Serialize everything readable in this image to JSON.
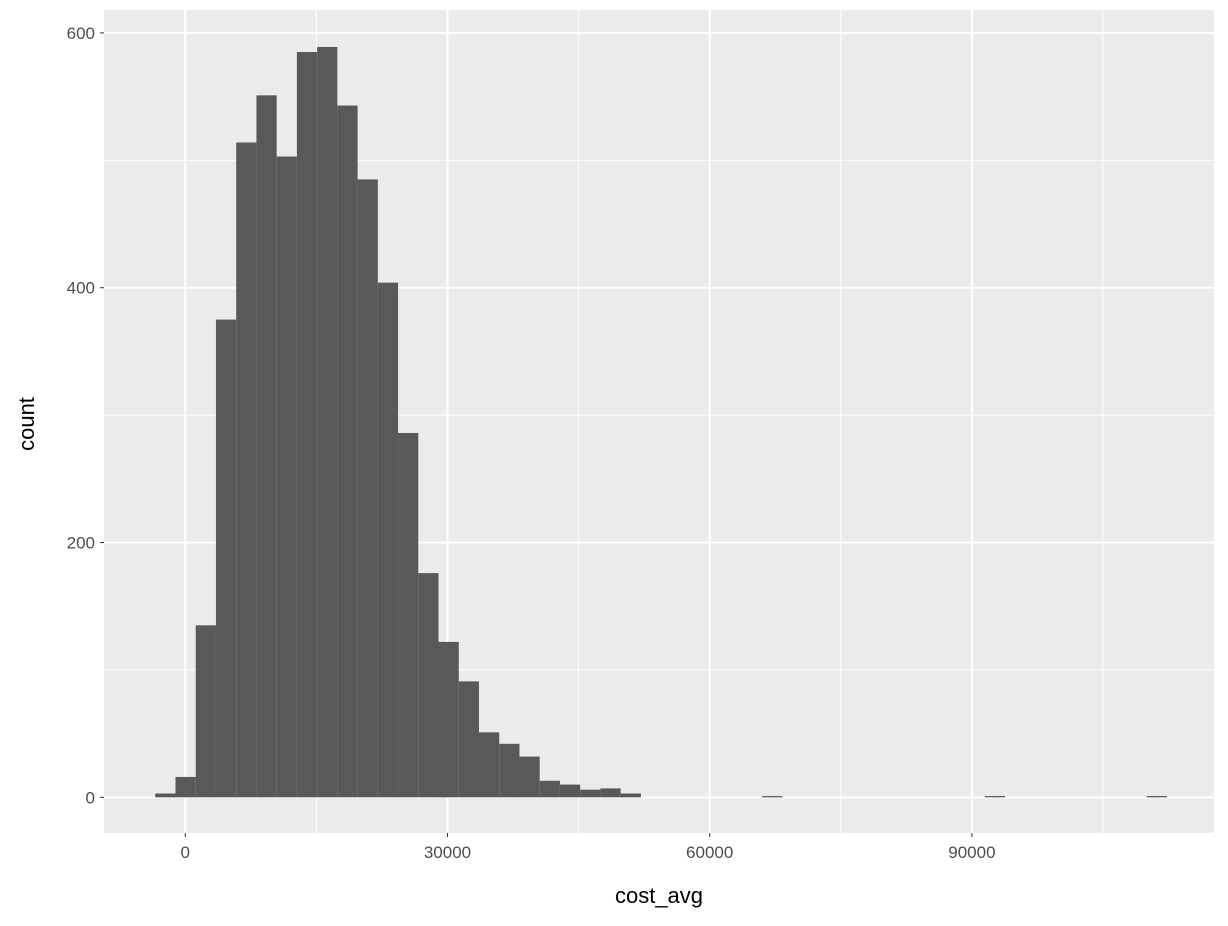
{
  "chart_data": {
    "type": "bar",
    "subtype": "histogram",
    "xlabel": "cost_avg",
    "ylabel": "count",
    "xlim": [
      -9300,
      117700
    ],
    "ylim": [
      -28,
      618
    ],
    "x_ticks": [
      0,
      30000,
      60000,
      90000
    ],
    "x_tick_labels": [
      "0",
      "30000",
      "60000",
      "90000"
    ],
    "y_ticks": [
      0,
      200,
      400,
      600
    ],
    "y_tick_labels": [
      "0",
      "200",
      "400",
      "600"
    ],
    "grid": true,
    "bin_start": -3435,
    "bin_width": 2315,
    "counts": [
      3,
      16,
      135,
      375,
      514,
      551,
      503,
      585,
      589,
      543,
      485,
      404,
      286,
      176,
      122,
      91,
      51,
      42,
      32,
      13,
      10,
      6,
      7,
      3,
      0,
      0,
      0,
      0,
      0,
      0,
      1,
      0,
      0,
      0,
      0,
      0,
      0,
      0,
      0,
      0,
      0,
      1,
      0,
      0,
      0,
      0,
      0,
      0,
      0,
      1
    ],
    "colors": {
      "bar": "#595959",
      "panel": "#ebebeb",
      "grid": "#ffffff",
      "tick_text": "#4d4d4d"
    }
  }
}
